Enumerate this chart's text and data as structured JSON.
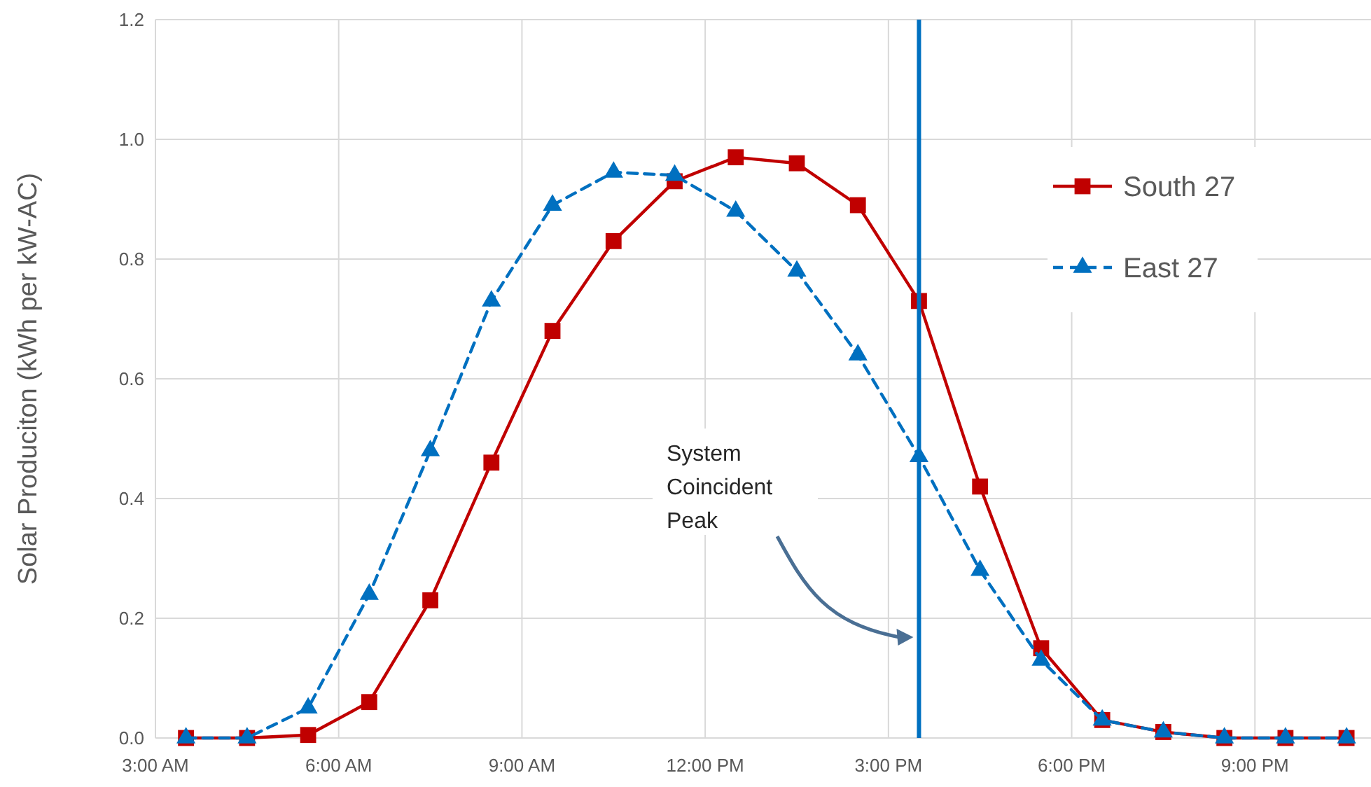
{
  "chart_data": {
    "type": "line",
    "ylabel": "Solar Produciton (kWh per kW-AC)",
    "x": [
      3.5,
      4.5,
      5.5,
      6.5,
      7.5,
      8.5,
      9.5,
      10.5,
      11.5,
      12.5,
      13.5,
      14.5,
      15.5,
      16.5,
      17.5,
      18.5,
      19.5,
      20.5,
      21.5,
      22.5
    ],
    "series": [
      {
        "name": "South 27",
        "color": "#c00000",
        "marker": "square",
        "line_style": "solid",
        "values": [
          0,
          0,
          0.005,
          0.06,
          0.23,
          0.46,
          0.68,
          0.83,
          0.93,
          0.97,
          0.96,
          0.89,
          0.73,
          0.42,
          0.15,
          0.03,
          0.01,
          0,
          0,
          0
        ]
      },
      {
        "name": "East 27",
        "color": "#0070c0",
        "marker": "triangle",
        "line_style": "dashed",
        "values": [
          0,
          0,
          0.05,
          0.24,
          0.48,
          0.73,
          0.89,
          0.945,
          0.94,
          0.88,
          0.78,
          0.64,
          0.47,
          0.28,
          0.13,
          0.03,
          0.01,
          0,
          0,
          0
        ]
      }
    ],
    "xlim": [
      3,
      22.9
    ],
    "xticks": [
      {
        "value": 3,
        "label": "3:00 AM"
      },
      {
        "value": 6,
        "label": "6:00 AM"
      },
      {
        "value": 9,
        "label": "9:00 AM"
      },
      {
        "value": 12,
        "label": "12:00 PM"
      },
      {
        "value": 15,
        "label": "3:00 PM"
      },
      {
        "value": 18,
        "label": "6:00 PM"
      },
      {
        "value": 21,
        "label": "9:00 PM"
      }
    ],
    "ylim": [
      0,
      1.2
    ],
    "yticks": [
      {
        "value": 0,
        "label": "0.0"
      },
      {
        "value": 0.2,
        "label": "0.2"
      },
      {
        "value": 0.4,
        "label": "0.4"
      },
      {
        "value": 0.6,
        "label": "0.6"
      },
      {
        "value": 0.8,
        "label": "0.8"
      },
      {
        "value": 1,
        "label": "1.0"
      },
      {
        "value": 1.2,
        "label": "1.2"
      }
    ],
    "grid": true,
    "legend": "right",
    "ref_lines": [
      {
        "axis": "x",
        "value": 15.5,
        "color": "#0070c0",
        "line_style": "solid"
      }
    ],
    "annotations": [
      "System Coincident Peak"
    ]
  }
}
